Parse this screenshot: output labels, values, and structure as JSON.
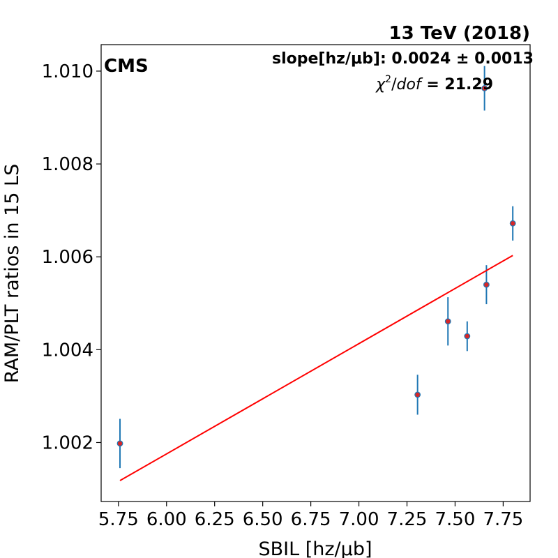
{
  "chart_data": {
    "type": "scatter",
    "title": "13 TeV (2018)",
    "experiment_label": "CMS",
    "xlabel": "SBIL [hz/μb]",
    "ylabel": "RAM/PLT ratios in 15 LS",
    "xlim": [
      5.66,
      7.89
    ],
    "ylim": [
      1.00073,
      1.01057
    ],
    "x_ticks": [
      5.75,
      6.0,
      6.25,
      6.5,
      6.75,
      7.0,
      7.25,
      7.5,
      7.75
    ],
    "x_tick_labels": [
      "5.75",
      "6.00",
      "6.25",
      "6.50",
      "6.75",
      "7.00",
      "7.25",
      "7.50",
      "7.75"
    ],
    "y_ticks": [
      1.002,
      1.004,
      1.006,
      1.008,
      1.01
    ],
    "y_tick_labels": [
      "1.002",
      "1.004",
      "1.006",
      "1.008",
      "1.010"
    ],
    "grid": false,
    "fit_text": {
      "slope_line": "slope[hz/μb]: 0.0024 ± 0.0013",
      "chi2_prefix": "χ",
      "chi2_sup": "2",
      "chi2_mid": "/",
      "chi2_italic": "dof",
      "chi2_value": " = 21.29"
    },
    "series": [
      {
        "type": "errorbar",
        "x": [
          5.758,
          7.305,
          7.463,
          7.563,
          7.653,
          7.663,
          7.8
        ],
        "y": [
          1.00198,
          1.00303,
          1.00461,
          1.00429,
          1.00963,
          1.0054,
          1.00672
        ],
        "yerr": [
          0.00053,
          0.00043,
          0.00052,
          0.00032,
          0.00048,
          0.00042,
          0.00037
        ],
        "marker_face": "#d62728",
        "errorbar_color": "#1f77b4"
      },
      {
        "type": "fit-line",
        "x": [
          5.758,
          7.8
        ],
        "y": [
          1.00118,
          1.00603
        ],
        "color": "#ff0000"
      }
    ]
  }
}
